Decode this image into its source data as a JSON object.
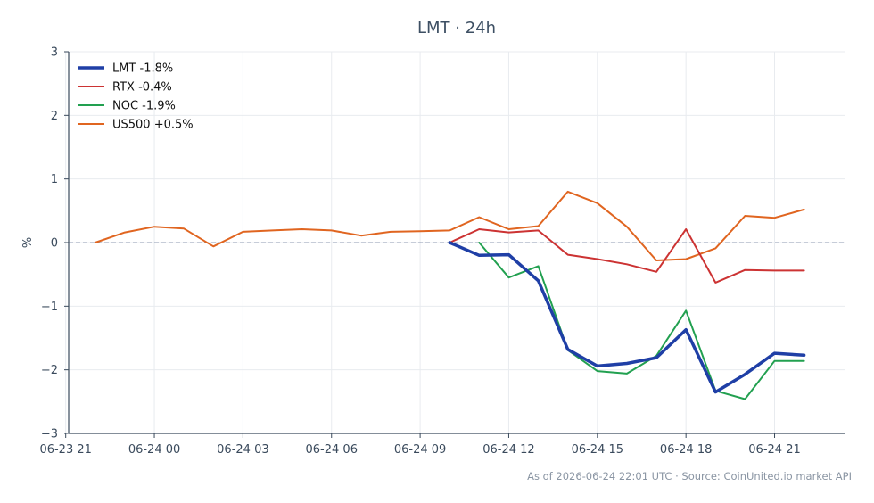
{
  "chart_data": {
    "type": "line",
    "title": "LMT · 24h",
    "ylabel": "%",
    "xlabel": "",
    "ylim": [
      -3,
      3
    ],
    "yticks": [
      3,
      2,
      1,
      0,
      -1,
      -2,
      -3
    ],
    "ytick_labels": [
      "3",
      "2",
      "1",
      "0",
      "−1",
      "−2",
      "−3"
    ],
    "x_range_hours": [
      -2.9,
      23.4
    ],
    "xticks": [
      {
        "hour": -3,
        "label": "06-23 21"
      },
      {
        "hour": 0,
        "label": "06-24 00"
      },
      {
        "hour": 3,
        "label": "06-24 03"
      },
      {
        "hour": 6,
        "label": "06-24 06"
      },
      {
        "hour": 9,
        "label": "06-24 09"
      },
      {
        "hour": 12,
        "label": "06-24 12"
      },
      {
        "hour": 15,
        "label": "06-24 15"
      },
      {
        "hour": 18,
        "label": "06-24 18"
      },
      {
        "hour": 21,
        "label": "06-24 21"
      }
    ],
    "grid": true,
    "zero_line": true,
    "legend_position": "top-left",
    "series": [
      {
        "name": "LMT -1.8%",
        "color": "#1f3fa6",
        "width": 3.5,
        "x": [
          10,
          11,
          12,
          13,
          14,
          15,
          16,
          17,
          18,
          19,
          20,
          21,
          22
        ],
        "y": [
          0.0,
          -0.2,
          -0.19,
          -0.6,
          -1.68,
          -1.94,
          -1.9,
          -1.81,
          -1.37,
          -2.35,
          -2.07,
          -1.74,
          -1.77
        ]
      },
      {
        "name": "RTX -0.4%",
        "color": "#cc3333",
        "width": 2,
        "x": [
          10,
          11,
          12,
          13,
          14,
          15,
          16,
          17,
          18,
          19,
          20,
          21,
          22
        ],
        "y": [
          0.0,
          0.21,
          0.16,
          0.19,
          -0.19,
          -0.26,
          -0.34,
          -0.46,
          0.21,
          -0.63,
          -0.43,
          -0.44,
          -0.44
        ]
      },
      {
        "name": "NOC -1.9%",
        "color": "#22a050",
        "width": 2,
        "x": [
          11,
          12,
          13,
          14,
          15,
          16,
          17,
          18,
          19,
          20,
          21,
          22
        ],
        "y": [
          0.0,
          -0.55,
          -0.37,
          -1.69,
          -2.02,
          -2.06,
          -1.78,
          -1.07,
          -2.33,
          -2.46,
          -1.86,
          -1.86
        ]
      },
      {
        "name": "US500 +0.5%",
        "color": "#e06520",
        "width": 2,
        "x": [
          -2,
          -1,
          0,
          1,
          2,
          3,
          4,
          5,
          6,
          7,
          8,
          9,
          10,
          11,
          12,
          13,
          14,
          15,
          16,
          17,
          18,
          19,
          20,
          21,
          22
        ],
        "y": [
          0.0,
          0.16,
          0.25,
          0.22,
          -0.06,
          0.17,
          0.19,
          0.21,
          0.19,
          0.11,
          0.17,
          0.18,
          0.19,
          0.4,
          0.21,
          0.26,
          0.8,
          0.62,
          0.25,
          -0.28,
          -0.26,
          -0.09,
          0.42,
          0.39,
          0.52
        ]
      }
    ],
    "footer": "As of 2026-06-24 22:01 UTC · Source: CoinUnited.io market API"
  }
}
